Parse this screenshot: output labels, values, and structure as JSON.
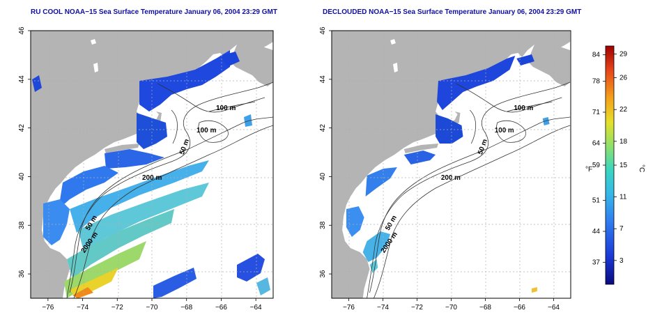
{
  "left_panel": {
    "title": "RU COOL NOAA−15 Sea Surface Temperature January 06, 2004 23:29 GMT"
  },
  "right_panel": {
    "title": "DECLOUDED NOAA−15 Sea Surface Temperature January 06, 2004 23:29 GMT"
  },
  "axes": {
    "x_ticks": [
      "−76",
      "−74",
      "−72",
      "−70",
      "−68",
      "−66",
      "−64"
    ],
    "y_ticks": [
      "36",
      "38",
      "40",
      "42",
      "44",
      "46"
    ],
    "x_values": [
      -76,
      -74,
      -72,
      -70,
      -68,
      -66,
      -64
    ],
    "y_values": [
      36,
      38,
      40,
      42,
      44,
      46
    ],
    "lon_range": [
      -77,
      -63
    ],
    "lat_range": [
      35,
      46
    ]
  },
  "contour_labels": [
    "100 m",
    "100 m",
    "50 m",
    "200 m",
    "50 m",
    "2000 m"
  ],
  "colorbar": {
    "fahrenheit_label": "°F",
    "celsius_label": "°C",
    "fahrenheit_ticks": [
      "84",
      "78",
      "71",
      "64",
      "59",
      "51",
      "44",
      "37"
    ],
    "fahrenheit_values": [
      84,
      78,
      71,
      64,
      59,
      51,
      44,
      37
    ],
    "celsius_ticks": [
      "29",
      "26",
      "22",
      "18",
      "15",
      "11",
      "7",
      "3"
    ],
    "celsius_values": [
      29,
      26,
      22,
      18,
      15,
      11,
      7,
      3
    ],
    "range_celsius": [
      0,
      30
    ],
    "colors": [
      "#0a0a80",
      "#1a3ad8",
      "#2f7bf0",
      "#35b8e8",
      "#3ad6c0",
      "#8ee06a",
      "#e6e02a",
      "#f5a21a",
      "#e6441a",
      "#a00000"
    ]
  },
  "colors": {
    "land": "#b4b4b4",
    "ocean": "#ffffff",
    "grid": "#b0b0b0",
    "contour": "#333333",
    "title": "#1010a0"
  }
}
